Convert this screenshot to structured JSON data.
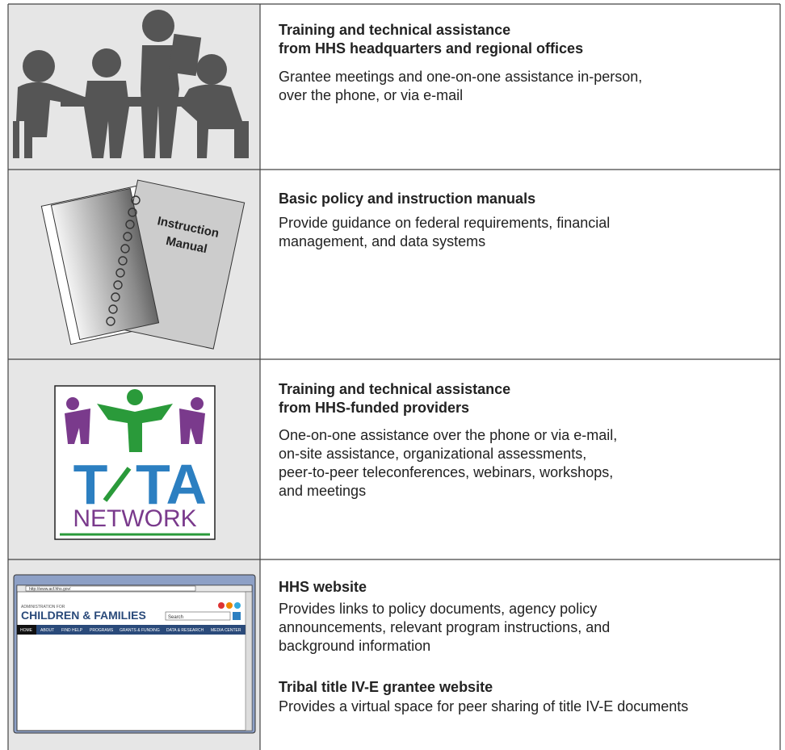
{
  "rows": [
    {
      "title_lines": [
        "Training and technical assistance",
        "from HHS headquarters and regional offices"
      ],
      "description_lines": [
        "Grantee meetings and one-on-one assistance in-person,",
        "over the phone, or via e-mail"
      ]
    },
    {
      "icon_text": [
        "Instruction",
        "Manual"
      ],
      "title_lines": [
        "Basic policy and instruction manuals"
      ],
      "description_lines": [
        "Provide guidance on federal requirements, financial",
        "management, and data systems"
      ]
    },
    {
      "icon_text": [
        "T",
        "TA",
        "NETWORK"
      ],
      "title_lines": [
        "Training and technical assistance",
        "from HHS-funded providers"
      ],
      "description_lines": [
        "One-on-one assistance over the phone or via e-mail,",
        "on-site assistance, organizational assessments,",
        "peer-to-peer teleconferences, webinars, workshops,",
        "and meetings"
      ]
    },
    {
      "icon_text": {
        "url": "http://www.acf.hhs.gov/",
        "agency_small": "ADMINISTRATION FOR",
        "agency": "CHILDREN & FAMILIES",
        "search": "Search",
        "nav": [
          "HOME",
          "ABOUT",
          "FIND HELP",
          "PROGRAMS",
          "GRANTS & FUNDING",
          "DATA & RESEARCH",
          "MEDIA CENTER"
        ]
      },
      "entries": [
        {
          "title_lines": [
            "HHS website"
          ],
          "description_lines": [
            "Provides links to policy documents, agency policy",
            "announcements, relevant program instructions, and",
            "background information"
          ]
        },
        {
          "title_lines": [
            "Tribal title IV-E grantee website"
          ],
          "description_lines": [
            "Provides a virtual space for peer sharing of title IV-E documents"
          ]
        }
      ]
    }
  ]
}
